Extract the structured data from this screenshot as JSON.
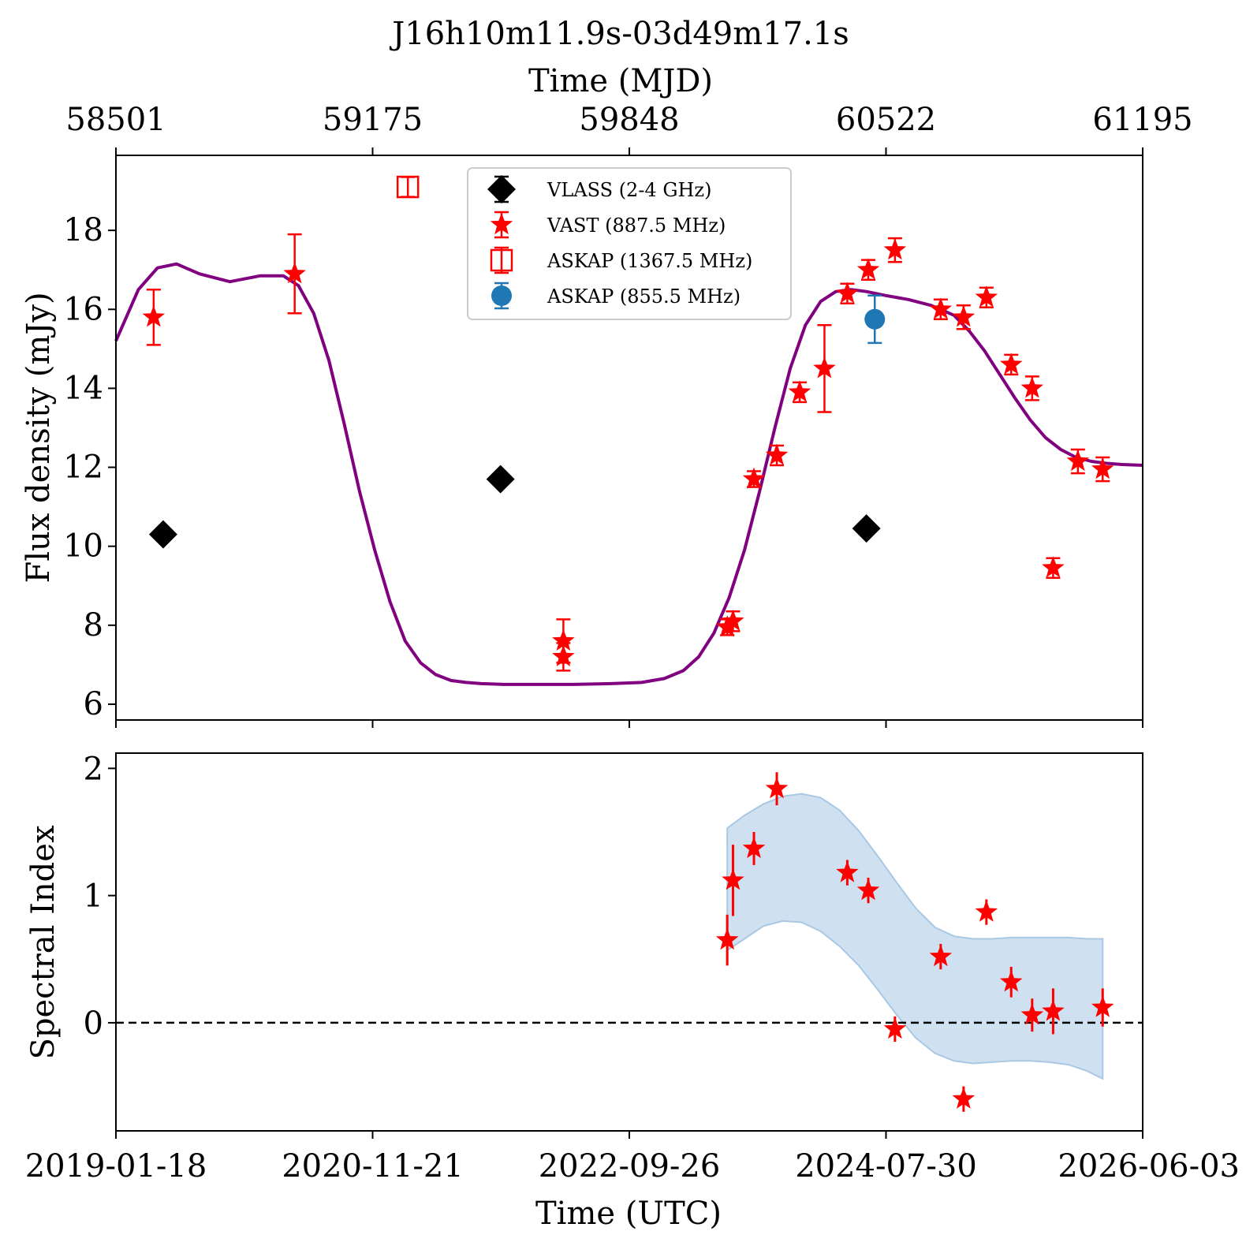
{
  "figure": {
    "title": "J16h10m11.9s-03d49m17.1s",
    "top_axis_label": "Time (MJD)",
    "top_ticks": [
      "58501",
      "59175",
      "59848",
      "60522",
      "61195"
    ],
    "bottom_axis_label": "Time (UTC)",
    "bottom_ticks": [
      "2019-01-18",
      "2020-11-21",
      "2022-09-26",
      "2024-07-30",
      "2026-06-03"
    ]
  },
  "chart_data": [
    {
      "type": "scatter",
      "panel": "flux",
      "ylabel": "Flux density (mJy)",
      "xlabel": "Time (MJD)",
      "xlim": [
        58501,
        61195
      ],
      "ylim": [
        5.6,
        19.9
      ],
      "yticks": [
        6,
        8,
        10,
        12,
        14,
        16,
        18
      ],
      "legend_position": "top-center",
      "legend": [
        "VLASS (2-4 GHz)",
        "VAST (887.5 MHz)",
        "ASKAP (1367.5 MHz)",
        "ASKAP (855.5 MHz)"
      ],
      "series": [
        {
          "name": "VLASS (2-4 GHz)",
          "marker": "diamond",
          "color": "#000000",
          "points": [
            {
              "x": 58625,
              "y": 10.3,
              "err": 0.1
            },
            {
              "x": 59510,
              "y": 11.7,
              "err": 0.1
            },
            {
              "x": 60470,
              "y": 10.45,
              "err": 0.1
            }
          ]
        },
        {
          "name": "VAST (887.5 MHz)",
          "marker": "star",
          "color": "#ff0000",
          "points": [
            {
              "x": 58600,
              "y": 15.8,
              "err": 0.7
            },
            {
              "x": 58970,
              "y": 16.9,
              "err": 1.0
            },
            {
              "x": 59675,
              "y": 7.6,
              "err": 0.55
            },
            {
              "x": 59675,
              "y": 7.2,
              "err": 0.35
            },
            {
              "x": 60105,
              "y": 7.95,
              "err": 0.2
            },
            {
              "x": 60120,
              "y": 8.1,
              "err": 0.25
            },
            {
              "x": 60175,
              "y": 11.7,
              "err": 0.2
            },
            {
              "x": 60235,
              "y": 12.3,
              "err": 0.25
            },
            {
              "x": 60295,
              "y": 13.9,
              "err": 0.25
            },
            {
              "x": 60360,
              "y": 14.5,
              "err": 1.1
            },
            {
              "x": 60420,
              "y": 16.4,
              "err": 0.25
            },
            {
              "x": 60475,
              "y": 17.0,
              "err": 0.25
            },
            {
              "x": 60545,
              "y": 17.5,
              "err": 0.3
            },
            {
              "x": 60665,
              "y": 16.0,
              "err": 0.25
            },
            {
              "x": 60725,
              "y": 15.8,
              "err": 0.3
            },
            {
              "x": 60785,
              "y": 16.3,
              "err": 0.25
            },
            {
              "x": 60850,
              "y": 14.6,
              "err": 0.25
            },
            {
              "x": 60905,
              "y": 14.0,
              "err": 0.3
            },
            {
              "x": 60960,
              "y": 9.45,
              "err": 0.25
            },
            {
              "x": 61025,
              "y": 12.15,
              "err": 0.3
            },
            {
              "x": 61090,
              "y": 11.95,
              "err": 0.3
            }
          ]
        },
        {
          "name": "ASKAP (1367.5 MHz)",
          "marker": "square-open",
          "color": "#ff0000",
          "points": [
            {
              "x": 59267,
              "y": 19.1,
              "err": 0.25
            }
          ]
        },
        {
          "name": "ASKAP (855.5 MHz)",
          "marker": "circle",
          "color": "#1f77b4",
          "points": [
            {
              "x": 60492,
              "y": 15.75,
              "err": 0.6
            }
          ]
        },
        {
          "name": "",
          "kind": "model-curve",
          "color": "#800080",
          "x": [
            58501,
            58560,
            58610,
            58660,
            58720,
            58800,
            58880,
            58940,
            58980,
            59020,
            59060,
            59100,
            59140,
            59180,
            59220,
            59260,
            59300,
            59340,
            59380,
            59420,
            59460,
            59520,
            59600,
            59700,
            59800,
            59880,
            59940,
            59990,
            60030,
            60070,
            60110,
            60150,
            60190,
            60230,
            60270,
            60310,
            60350,
            60390,
            60430,
            60470,
            60520,
            60580,
            60640,
            60700,
            60740,
            60780,
            60820,
            60860,
            60900,
            60940,
            60980,
            61020,
            61060,
            61100,
            61140,
            61195
          ],
          "y": [
            15.2,
            16.5,
            17.05,
            17.15,
            16.9,
            16.7,
            16.85,
            16.85,
            16.6,
            15.9,
            14.7,
            13.1,
            11.4,
            9.9,
            8.6,
            7.6,
            7.05,
            6.75,
            6.6,
            6.55,
            6.52,
            6.5,
            6.5,
            6.5,
            6.52,
            6.55,
            6.65,
            6.85,
            7.2,
            7.8,
            8.7,
            9.9,
            11.4,
            13.0,
            14.5,
            15.6,
            16.2,
            16.45,
            16.5,
            16.45,
            16.35,
            16.25,
            16.1,
            15.85,
            15.45,
            14.95,
            14.35,
            13.75,
            13.2,
            12.75,
            12.45,
            12.25,
            12.15,
            12.1,
            12.07,
            12.05
          ]
        }
      ]
    },
    {
      "type": "scatter",
      "panel": "spectral-index",
      "ylabel": "Spectral Index",
      "xlabel": "Time (UTC)",
      "xlim": [
        58501,
        61195
      ],
      "ylim": [
        -0.85,
        2.12
      ],
      "yticks": [
        0,
        1,
        2
      ],
      "reference_line": {
        "y": 0,
        "style": "dashed",
        "color": "#000000"
      },
      "series": [
        {
          "name": "",
          "marker": "star",
          "color": "#ff0000",
          "points": [
            {
              "x": 60105,
              "y": 0.65,
              "err": 0.2
            },
            {
              "x": 60120,
              "y": 1.12,
              "err": 0.28
            },
            {
              "x": 60175,
              "y": 1.37,
              "err": 0.13
            },
            {
              "x": 60235,
              "y": 1.84,
              "err": 0.13
            },
            {
              "x": 60420,
              "y": 1.18,
              "err": 0.1
            },
            {
              "x": 60475,
              "y": 1.04,
              "err": 0.1
            },
            {
              "x": 60545,
              "y": -0.05,
              "err": 0.1
            },
            {
              "x": 60665,
              "y": 0.52,
              "err": 0.1
            },
            {
              "x": 60725,
              "y": -0.6,
              "err": 0.1
            },
            {
              "x": 60785,
              "y": 0.87,
              "err": 0.1
            },
            {
              "x": 60850,
              "y": 0.32,
              "err": 0.12
            },
            {
              "x": 60905,
              "y": 0.06,
              "err": 0.13
            },
            {
              "x": 60960,
              "y": 0.09,
              "err": 0.18
            },
            {
              "x": 61090,
              "y": 0.12,
              "err": 0.15
            }
          ]
        },
        {
          "name": "",
          "kind": "uncertainty-band",
          "color": "#a8c8e4",
          "x": [
            60105,
            60150,
            60200,
            60250,
            60300,
            60350,
            60400,
            60450,
            60500,
            60550,
            60600,
            60650,
            60700,
            60750,
            60800,
            60850,
            60900,
            60950,
            61000,
            61050,
            61090
          ],
          "lower": [
            0.57,
            0.66,
            0.76,
            0.8,
            0.79,
            0.72,
            0.6,
            0.45,
            0.26,
            0.06,
            -0.12,
            -0.24,
            -0.3,
            -0.32,
            -0.31,
            -0.3,
            -0.3,
            -0.31,
            -0.33,
            -0.38,
            -0.44
          ],
          "upper": [
            1.53,
            1.63,
            1.72,
            1.78,
            1.8,
            1.77,
            1.67,
            1.51,
            1.31,
            1.1,
            0.9,
            0.75,
            0.68,
            0.66,
            0.66,
            0.67,
            0.67,
            0.67,
            0.67,
            0.66,
            0.66
          ]
        }
      ]
    }
  ]
}
